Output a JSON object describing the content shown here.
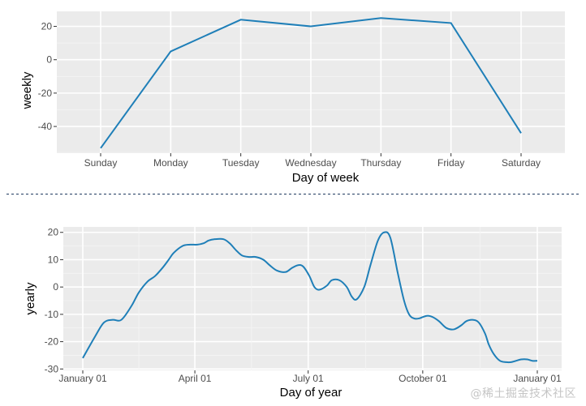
{
  "colors": {
    "panel_bg": "#EBEBEB",
    "grid_major": "#FFFFFF",
    "grid_minor": "#F5F5F5",
    "line": "#1F7FB8",
    "tick_text": "#4D4D4D",
    "separator": "#1F3A5F",
    "watermark": "#C5C5C5"
  },
  "watermark": "@稀土掘金技术社区",
  "chart_data": [
    {
      "type": "line",
      "title": "",
      "xlabel": "Day of week",
      "ylabel": "weekly",
      "categories": [
        "Sunday",
        "Monday",
        "Tuesday",
        "Wednesday",
        "Thursday",
        "Friday",
        "Saturday"
      ],
      "series": [
        {
          "values": [
            -53,
            5,
            24,
            20,
            25,
            22,
            -44
          ]
        }
      ],
      "ylim": [
        -56,
        29
      ],
      "yticks": [
        -40,
        -20,
        0,
        20
      ],
      "grid": true
    },
    {
      "type": "line",
      "title": "",
      "xlabel": "Day of year",
      "ylabel": "yearly",
      "x_tick_labels": [
        "January 01",
        "April 01",
        "July 01",
        "October 01",
        "January 01"
      ],
      "x_tick_days": [
        0,
        90,
        181,
        273,
        365
      ],
      "series": [
        {
          "x": [
            0,
            10,
            17,
            24,
            31,
            39,
            45,
            52,
            58,
            64,
            69,
            73,
            80,
            86,
            92,
            97,
            101,
            106,
            113,
            118,
            123,
            128,
            134,
            139,
            145,
            150,
            156,
            163,
            168,
            173,
            177,
            182,
            186,
            190,
            196,
            200,
            206,
            212,
            216,
            220,
            226,
            231,
            237,
            242,
            247,
            253,
            258,
            262,
            266,
            270,
            273,
            277,
            281,
            286,
            292,
            298,
            304,
            308,
            313,
            318,
            323,
            326,
            330,
            335,
            340,
            344,
            348,
            352,
            357,
            361,
            365
          ],
          "values": [
            -26,
            -18,
            -13,
            -12,
            -12,
            -7,
            -2,
            2,
            4,
            7,
            10,
            12.5,
            15,
            15.5,
            15.5,
            16,
            17,
            17.5,
            17.5,
            16,
            13.5,
            11.5,
            11,
            11,
            10,
            8,
            6,
            5.5,
            7,
            8,
            7.5,
            4,
            0,
            -1,
            0.5,
            2.5,
            2.5,
            0,
            -3.5,
            -4.5,
            0,
            8,
            17,
            20,
            18,
            5,
            -5,
            -10,
            -11.5,
            -11.5,
            -11,
            -10.5,
            -11,
            -12.5,
            -15,
            -15.5,
            -14,
            -12.5,
            -12,
            -13,
            -17,
            -21,
            -24.5,
            -27,
            -27.5,
            -27.5,
            -27,
            -26.5,
            -26.5,
            -27,
            -27
          ]
        }
      ],
      "ylim": [
        -30.5,
        22
      ],
      "yticks": [
        -30,
        -20,
        -10,
        0,
        10,
        20
      ],
      "grid": true
    }
  ]
}
